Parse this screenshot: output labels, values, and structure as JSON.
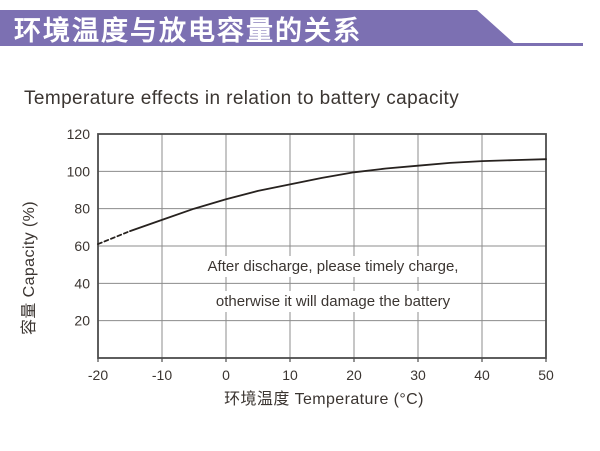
{
  "banner": {
    "title": "环境温度与放电容量的关系",
    "color": "#7c70b2"
  },
  "subtitle": "Temperature effects in relation to battery capacity",
  "chart_data": {
    "type": "line",
    "title": "Temperature effects in relation to battery capacity",
    "xlabel": "环境温度 Temperature (°C)",
    "ylabel": "容量 Capacity (%)",
    "xlim": [
      -20,
      50
    ],
    "ylim": [
      0,
      120
    ],
    "x_ticks": [
      -20,
      -10,
      0,
      10,
      20,
      30,
      40,
      50
    ],
    "y_ticks": [
      20,
      40,
      60,
      80,
      100,
      120
    ],
    "grid": true,
    "legend": "none",
    "series": [
      {
        "name": "capacity",
        "x": [
          -20,
          -15,
          -10,
          -5,
          0,
          5,
          10,
          15,
          20,
          25,
          30,
          35,
          40,
          45,
          50
        ],
        "values": [
          61,
          68,
          74,
          80,
          85,
          89.5,
          93,
          96.5,
          99.5,
          101.5,
          103,
          104.5,
          105.5,
          106,
          106.5
        ],
        "dashed_x_range": [
          -20,
          -15
        ],
        "color": "#27221f"
      }
    ],
    "annotation": [
      "After discharge, please timely charge,",
      "otherwise it will damage the battery"
    ]
  }
}
